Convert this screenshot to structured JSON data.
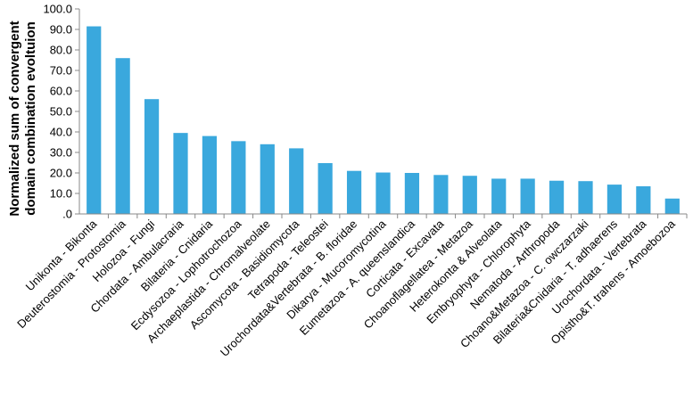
{
  "chart_data": {
    "type": "bar",
    "title": "",
    "xlabel": "",
    "ylabel_lines": [
      "Normalized sum of convergent",
      "domain combination evoltuion"
    ],
    "ylim": [
      0,
      100
    ],
    "ytick_labels": [
      ".0",
      "10.0",
      "20.0",
      "30.0",
      "40.0",
      "50.0",
      "60.0",
      "70.0",
      "80.0",
      "90.0",
      "100.0"
    ],
    "bar_color": "#3aa8dd",
    "grid": false,
    "categories": [
      "Unikonta - Bikonta",
      "Deuterostomia - Protostomia",
      "Holozoa - Fungi",
      "Chordata - Ambulacraria",
      "Bilateria - Cnidaria",
      "Ecdysozoa - Lophotrochozoa",
      "Archaeplastida - Chromalveolate",
      "Ascomycota - Basidiomycota",
      "Tetrapoda - Teleostei",
      "Urochordata&Vertebrata - B. floridae",
      "Dikarya - Mucoromycotina",
      "Eumetazoa - A. queenslandica",
      "Corticata - Excavata",
      "Choanoflagellatea - Metazoa",
      "Heterokonta & Alveolata",
      "Embryophyta - Chlorophyta",
      "Nematoda - Arthropoda",
      "Choano&Metazoa - C. owczarzaki",
      "Bilateria&Cnidaria - T. adhaerens",
      "Urochordata - Vertebrata",
      "Opistho&T. trahens - Amoebozoa"
    ],
    "values": [
      91.5,
      76.0,
      56.0,
      39.5,
      38.0,
      35.5,
      34.0,
      32.0,
      24.8,
      21.0,
      20.2,
      20.0,
      19.0,
      18.6,
      17.2,
      17.2,
      16.2,
      16.0,
      14.3,
      13.5,
      7.5
    ]
  }
}
